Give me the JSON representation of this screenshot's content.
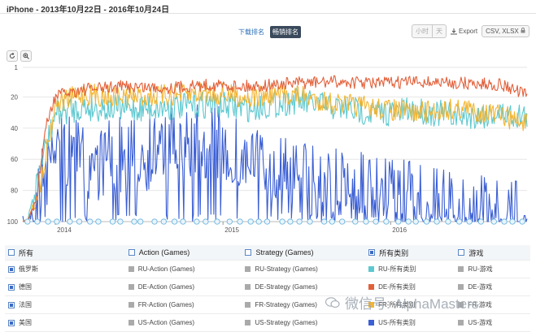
{
  "header": {
    "title": "iPhone - 2013年10月22日 - 2016年10月24日",
    "rank_tabs": [
      {
        "label": "下载排名",
        "active": false
      },
      {
        "label": "畅销排名",
        "active": true
      }
    ],
    "granularity": [
      {
        "label": "小时"
      },
      {
        "label": "天"
      }
    ],
    "export_label": "Export",
    "format_label": "CSV, XLSX"
  },
  "toolbar": {
    "reset_icon": "reset-icon",
    "zoom_icon": "zoom-icon"
  },
  "chart_data": {
    "type": "line",
    "y_reversed": true,
    "ylim": [
      100,
      1
    ],
    "y_ticks": [
      "1",
      "20",
      "40",
      "60",
      "80",
      "100"
    ],
    "x_ticks": [
      "2014",
      "2015",
      "2016"
    ],
    "x_range": [
      "2013-10-22",
      "2016-10-24"
    ],
    "grid": "horizontal",
    "series": [
      {
        "name": "DE-所有类别",
        "color": "#e2603a",
        "points": [
          [
            "2013-11-01",
            100
          ],
          [
            "2013-11-20",
            85
          ],
          [
            "2013-12-10",
            40
          ],
          [
            "2014-01-01",
            18
          ],
          [
            "2014-03-01",
            14
          ],
          [
            "2014-06-01",
            12
          ],
          [
            "2014-09-01",
            13
          ],
          [
            "2014-12-01",
            11
          ],
          [
            "2015-03-01",
            12
          ],
          [
            "2015-06-01",
            10
          ],
          [
            "2015-09-01",
            9
          ],
          [
            "2015-12-01",
            10
          ],
          [
            "2016-03-01",
            9
          ],
          [
            "2016-06-01",
            10
          ],
          [
            "2016-09-01",
            11
          ],
          [
            "2016-10-24",
            18
          ]
        ]
      },
      {
        "name": "FR-所有类别",
        "color": "#f2b533",
        "points": [
          [
            "2013-11-01",
            100
          ],
          [
            "2013-12-01",
            70
          ],
          [
            "2014-01-01",
            22
          ],
          [
            "2014-03-01",
            16
          ],
          [
            "2014-06-01",
            18
          ],
          [
            "2014-09-01",
            17
          ],
          [
            "2014-12-01",
            15
          ],
          [
            "2015-03-01",
            18
          ],
          [
            "2015-06-01",
            16
          ],
          [
            "2015-09-01",
            22
          ],
          [
            "2015-12-01",
            25
          ],
          [
            "2016-03-01",
            28
          ],
          [
            "2016-06-01",
            25
          ],
          [
            "2016-09-01",
            30
          ],
          [
            "2016-10-24",
            35
          ]
        ]
      },
      {
        "name": "RU-所有类别",
        "color": "#5cc8cf",
        "points": [
          [
            "2013-11-01",
            100
          ],
          [
            "2013-12-01",
            60
          ],
          [
            "2014-01-01",
            28
          ],
          [
            "2014-03-01",
            24
          ],
          [
            "2014-06-01",
            25
          ],
          [
            "2014-09-01",
            24
          ],
          [
            "2014-12-01",
            22
          ],
          [
            "2015-03-01",
            25
          ],
          [
            "2015-06-01",
            20
          ],
          [
            "2015-09-01",
            24
          ],
          [
            "2015-12-01",
            28
          ],
          [
            "2016-03-01",
            26
          ],
          [
            "2016-06-01",
            30
          ],
          [
            "2016-09-01",
            28
          ],
          [
            "2016-10-24",
            30
          ]
        ]
      },
      {
        "name": "US-所有类别",
        "color": "#3b5fd4",
        "points": [
          [
            "2013-11-01",
            100
          ],
          [
            "2013-12-01",
            70
          ],
          [
            "2014-01-01",
            45
          ],
          [
            "2014-03-01",
            55
          ],
          [
            "2014-06-01",
            50
          ],
          [
            "2014-09-01",
            45
          ],
          [
            "2014-12-01",
            40
          ],
          [
            "2015-03-01",
            55
          ],
          [
            "2015-06-01",
            65
          ],
          [
            "2015-09-01",
            70
          ],
          [
            "2015-12-01",
            75
          ],
          [
            "2016-03-01",
            80
          ],
          [
            "2016-06-01",
            85
          ],
          [
            "2016-09-01",
            90
          ],
          [
            "2016-10-24",
            88
          ]
        ]
      }
    ]
  },
  "legend": {
    "columns": [
      {
        "label": "所有",
        "checked": false
      },
      {
        "label": "Action (Games)",
        "checked": false
      },
      {
        "label": "Strategy (Games)",
        "checked": false
      },
      {
        "label": "所有类别",
        "checked": true
      },
      {
        "label": "游戏",
        "checked": false
      }
    ],
    "rows": [
      {
        "country": "俄罗斯",
        "cells": [
          "RU-Action (Games)",
          "RU-Strategy (Games)",
          "RU-所有类别",
          "RU-游戏"
        ],
        "colors": [
          "#aaaaaa",
          "#aaaaaa",
          "#5cc8cf",
          "#aaaaaa"
        ]
      },
      {
        "country": "德国",
        "cells": [
          "DE-Action (Games)",
          "DE-Strategy (Games)",
          "DE-所有类别",
          "DE-游戏"
        ],
        "colors": [
          "#aaaaaa",
          "#aaaaaa",
          "#e2603a",
          "#aaaaaa"
        ]
      },
      {
        "country": "法国",
        "cells": [
          "FR-Action (Games)",
          "FR-Strategy (Games)",
          "FR-所有类别",
          "FR-游戏"
        ],
        "colors": [
          "#aaaaaa",
          "#aaaaaa",
          "#f2b533",
          "#aaaaaa"
        ]
      },
      {
        "country": "美国",
        "cells": [
          "US-Action (Games)",
          "US-Strategy (Games)",
          "US-所有类别",
          "US-游戏"
        ],
        "colors": [
          "#aaaaaa",
          "#aaaaaa",
          "#3b5fd4",
          "#aaaaaa"
        ]
      }
    ]
  },
  "watermark": {
    "text": "微信号: AlphaMasters"
  }
}
